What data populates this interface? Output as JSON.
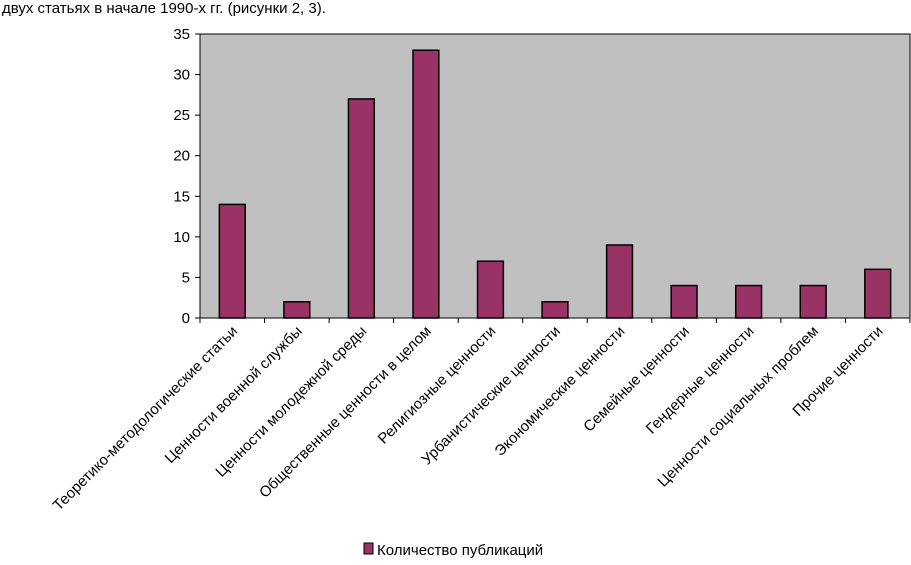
{
  "caption": "двух статьях в начале 1990-х гг. (рисунки 2, 3).",
  "colors": {
    "bar": "#993366",
    "plot_bg": "#c0c0c0"
  },
  "chart_data": {
    "type": "bar",
    "categories": [
      "Теоретико-методологические статьи",
      "Ценности военной службы",
      "Ценности молодежной среды",
      "Общественные ценности в целом",
      "Религиозные ценности",
      "Урбанистические ценности",
      "Экономические ценности",
      "Семейные ценности",
      "Гендерные ценности",
      "Ценности социальных проблем",
      "Прочие ценности"
    ],
    "series": [
      {
        "name": "Количество публикаций",
        "values": [
          14,
          2,
          27,
          33,
          7,
          2,
          9,
          4,
          4,
          4,
          6
        ]
      }
    ],
    "ylim": [
      0,
      35
    ],
    "yticks": [
      "0",
      "5",
      "10",
      "15",
      "20",
      "25",
      "30",
      "35"
    ],
    "grid": false,
    "legend": "bottom"
  }
}
